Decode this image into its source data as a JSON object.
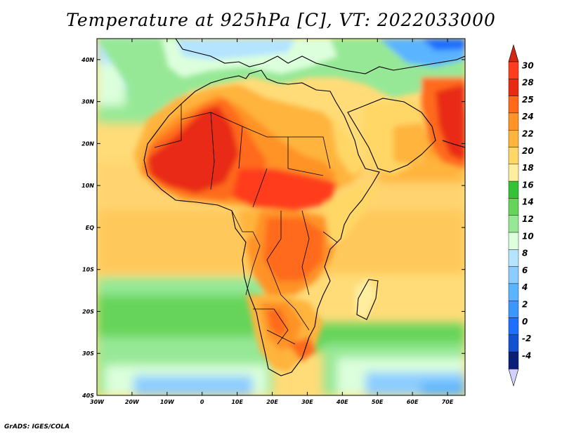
{
  "title": "Temperature at 925hPa [C], VT: 2022033000",
  "credit": "GrADS: IGES/COLA",
  "map": {
    "region": "Africa",
    "lon_range": [
      -30,
      75
    ],
    "lat_range": [
      -40,
      45
    ],
    "lat_ticks": [
      "40N",
      "30N",
      "20N",
      "10N",
      "EQ",
      "10S",
      "20S",
      "30S",
      "40S"
    ],
    "lon_ticks": [
      "30W",
      "20W",
      "10W",
      "0",
      "10E",
      "20E",
      "30E",
      "40E",
      "50E",
      "60E",
      "70E"
    ]
  },
  "colorbar": {
    "labels": [
      "30",
      "28",
      "25",
      "24",
      "22",
      "20",
      "18",
      "16",
      "14",
      "12",
      "10",
      "8",
      "6",
      "4",
      "2",
      "0",
      "-2",
      "-4"
    ],
    "colors": [
      "#ff3c1e",
      "#e82a12",
      "#ff6a1a",
      "#ff9326",
      "#ffb43c",
      "#ffd766",
      "#ffeea0",
      "#36c236",
      "#66d45a",
      "#96e896",
      "#dcffdc",
      "#b4e4ff",
      "#8ccdff",
      "#5ab4ff",
      "#3c96ff",
      "#1e6eff",
      "#1450d2",
      "#0a1e78"
    ],
    "top_arrow_color": "#d22814",
    "bottom_arrow_color": "#d2d2ff"
  }
}
